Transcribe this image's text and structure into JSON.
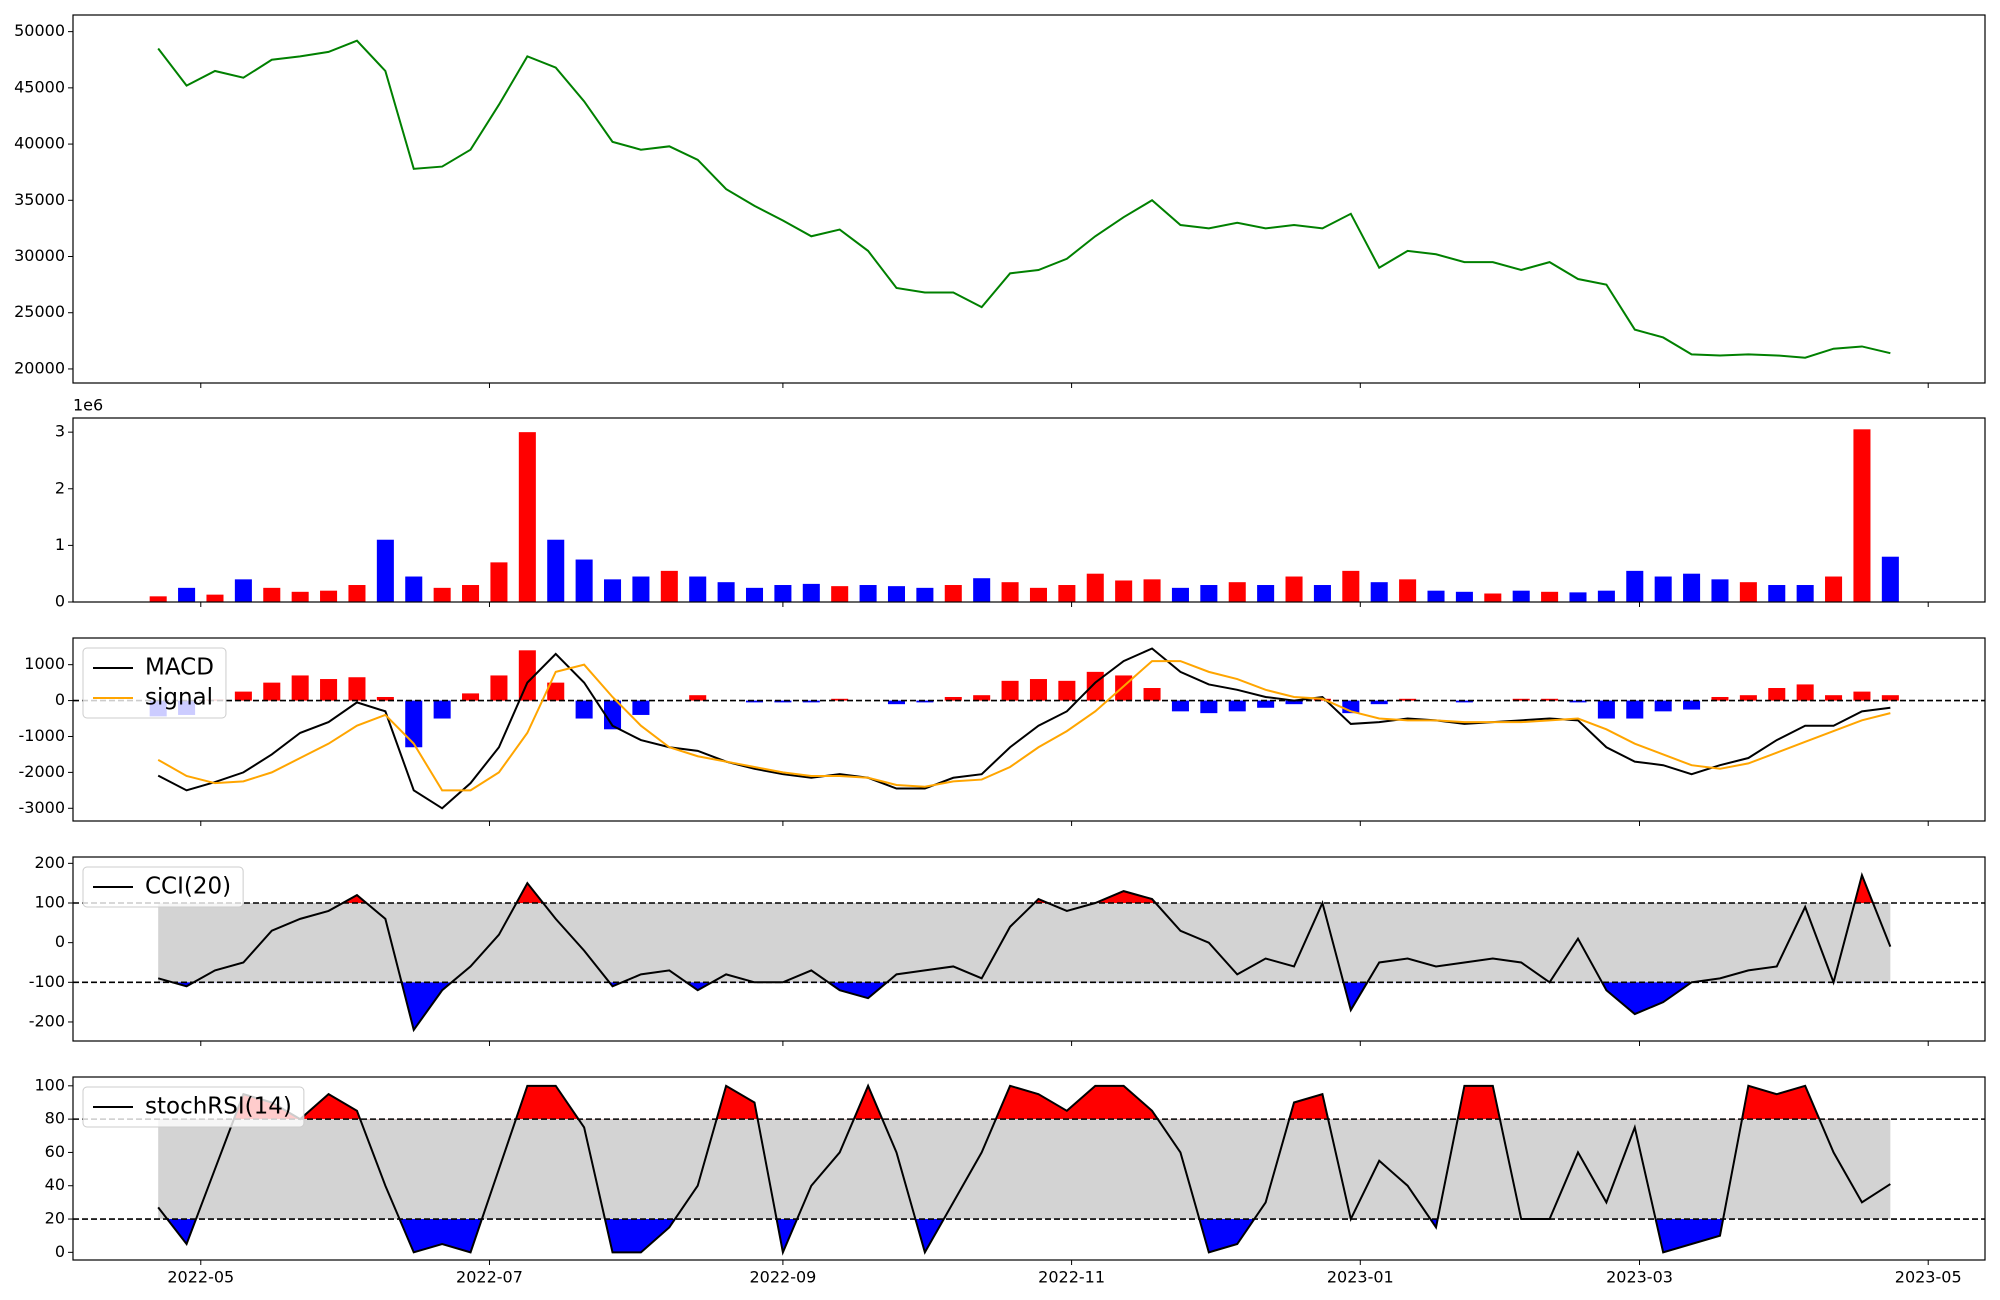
{
  "chart_data": [
    {
      "type": "line",
      "x": [
        19104,
        19110,
        19116,
        19122,
        19128,
        19134,
        19140,
        19146,
        19152,
        19158,
        19164,
        19170,
        19176,
        19182,
        19188,
        19194,
        19200,
        19206,
        19212,
        19218,
        19224,
        19230,
        19236,
        19242,
        19248,
        19254,
        19260,
        19266,
        19272,
        19278,
        19284,
        19290,
        19296,
        19302,
        19308,
        19314,
        19320,
        19326,
        19332,
        19338,
        19344,
        19350,
        19356,
        19362,
        19368,
        19374,
        19380,
        19386,
        19392,
        19398,
        19404,
        19410,
        19416,
        19422,
        19428,
        19434,
        19440,
        19446,
        19452,
        19458,
        19464,
        19470
      ],
      "values": [
        48500,
        45200,
        46500,
        45900,
        47500,
        47800,
        48200,
        49200,
        46500,
        37800,
        38000,
        39500,
        43500,
        47800,
        46800,
        43800,
        40200,
        39500,
        39800,
        38600,
        36000,
        34500,
        33200,
        31800,
        32400,
        30500,
        27200,
        26800,
        26800,
        25500,
        28500,
        28800,
        29800,
        31800,
        33500,
        35000,
        32800,
        32500,
        33000,
        32500,
        32800,
        32500,
        33800,
        29000,
        30500,
        30200,
        29500,
        29500,
        28800,
        29500,
        28000,
        27500,
        23500,
        22800,
        21300,
        21200,
        21300,
        21200,
        21000,
        21800,
        22000,
        21400
      ],
      "color": "green",
      "xlim": [
        19086,
        19490
      ],
      "ylim": [
        18750,
        51480
      ],
      "yticks": [
        20000,
        25000,
        30000,
        35000,
        40000,
        45000,
        50000
      ]
    },
    {
      "type": "bar",
      "x": [
        19104,
        19110,
        19116,
        19122,
        19128,
        19134,
        19140,
        19146,
        19152,
        19158,
        19164,
        19170,
        19176,
        19182,
        19188,
        19194,
        19200,
        19206,
        19212,
        19218,
        19224,
        19230,
        19236,
        19242,
        19248,
        19254,
        19260,
        19266,
        19272,
        19278,
        19284,
        19290,
        19296,
        19302,
        19308,
        19314,
        19320,
        19326,
        19332,
        19338,
        19344,
        19350,
        19356,
        19362,
        19368,
        19374,
        19380,
        19386,
        19392,
        19398,
        19404,
        19410,
        19416,
        19422,
        19428,
        19434,
        19440,
        19446,
        19452,
        19458,
        19464,
        19470
      ],
      "values": [
        100000,
        250000,
        130000,
        400000,
        250000,
        180000,
        200000,
        300000,
        1100000,
        450000,
        250000,
        300000,
        700000,
        3000000,
        1100000,
        750000,
        400000,
        450000,
        550000,
        450000,
        350000,
        250000,
        300000,
        320000,
        280000,
        300000,
        280000,
        250000,
        300000,
        420000,
        350000,
        250000,
        300000,
        500000,
        380000,
        400000,
        250000,
        300000,
        350000,
        300000,
        450000,
        300000,
        550000,
        350000,
        400000,
        200000,
        180000,
        150000,
        200000,
        180000,
        170000,
        200000,
        550000,
        450000,
        500000,
        400000,
        350000,
        300000,
        300000,
        450000,
        3050000,
        800000
      ],
      "up_color": "red",
      "down_color": "blue",
      "xlim": [
        19086,
        19490
      ],
      "ylim": [
        0,
        3250000
      ],
      "yticks": [
        0,
        {
          "value": 1000000,
          "label": "1"
        },
        {
          "value": 2000000,
          "label": "2"
        },
        {
          "value": 3000000,
          "label": "3"
        }
      ],
      "y_offset_label": "1e6"
    },
    {
      "type": "macd",
      "x": [
        19104,
        19110,
        19116,
        19122,
        19128,
        19134,
        19140,
        19146,
        19152,
        19158,
        19164,
        19170,
        19176,
        19182,
        19188,
        19194,
        19200,
        19206,
        19212,
        19218,
        19224,
        19230,
        19236,
        19242,
        19248,
        19254,
        19260,
        19266,
        19272,
        19278,
        19284,
        19290,
        19296,
        19302,
        19308,
        19314,
        19320,
        19326,
        19332,
        19338,
        19344,
        19350,
        19356,
        19362,
        19368,
        19374,
        19380,
        19386,
        19392,
        19398,
        19404,
        19410,
        19416,
        19422,
        19428,
        19434,
        19440,
        19446,
        19452,
        19458,
        19464,
        19470
      ],
      "series": [
        {
          "name": "MACD",
          "color": "black",
          "values": [
            -2090,
            -2500,
            -2270,
            -2000,
            -1500,
            -900,
            -600,
            -50,
            -300,
            -2500,
            -3000,
            -2300,
            -1300,
            500,
            1300,
            500,
            -700,
            -1100,
            -1300,
            -1400,
            -1700,
            -1900,
            -2050,
            -2150,
            -2050,
            -2150,
            -2450,
            -2450,
            -2150,
            -2050,
            -1300,
            -700,
            -300,
            500,
            1100,
            1450,
            800,
            450,
            300,
            100,
            0,
            100,
            -650,
            -600,
            -500,
            -550,
            -650,
            -600,
            -550,
            -500,
            -550,
            -1300,
            -1700,
            -1800,
            -2050,
            -1800,
            -1600,
            -1100,
            -700,
            -700,
            -300,
            -200
          ]
        },
        {
          "name": "signal",
          "color": "orange",
          "values": [
            -1650,
            -2100,
            -2300,
            -2250,
            -2000,
            -1600,
            -1200,
            -700,
            -400,
            -1200,
            -2500,
            -2500,
            -2000,
            -900,
            800,
            1000,
            100,
            -700,
            -1300,
            -1550,
            -1700,
            -1850,
            -2000,
            -2100,
            -2100,
            -2150,
            -2350,
            -2400,
            -2250,
            -2200,
            -1850,
            -1300,
            -850,
            -300,
            400,
            1100,
            1100,
            800,
            600,
            300,
            100,
            50,
            -300,
            -500,
            -550,
            -550,
            -600,
            -600,
            -600,
            -550,
            -500,
            -800,
            -1200,
            -1500,
            -1800,
            -1900,
            -1750,
            -1450,
            -1150,
            -850,
            -550,
            -350
          ]
        }
      ],
      "histogram": {
        "values": [
          -440,
          -400,
          30,
          250,
          500,
          700,
          600,
          650,
          100,
          -1300,
          -500,
          200,
          700,
          1400,
          500,
          -500,
          -800,
          -400,
          0,
          150,
          0,
          -50,
          -50,
          -50,
          50,
          0,
          -100,
          -50,
          100,
          150,
          550,
          600,
          550,
          800,
          700,
          350,
          -300,
          -350,
          -300,
          -200,
          -100,
          50,
          -350,
          -100,
          50,
          0,
          -50,
          0,
          50,
          50,
          -50,
          -500,
          -500,
          -300,
          -250,
          100,
          150,
          350,
          450,
          150,
          250,
          150
        ],
        "up_color": "red",
        "down_color": "blue"
      },
      "reference_line": 0,
      "xlim": [
        19086,
        19490
      ],
      "ylim": [
        -3354,
        1743
      ],
      "yticks": [
        -3000,
        -2000,
        -1000,
        0,
        1000
      ],
      "legend": "upper left"
    },
    {
      "type": "band",
      "x": [
        19104,
        19110,
        19116,
        19122,
        19128,
        19134,
        19140,
        19146,
        19152,
        19158,
        19164,
        19170,
        19176,
        19182,
        19188,
        19194,
        19200,
        19206,
        19212,
        19218,
        19224,
        19230,
        19236,
        19242,
        19248,
        19254,
        19260,
        19266,
        19272,
        19278,
        19284,
        19290,
        19296,
        19302,
        19308,
        19314,
        19320,
        19326,
        19332,
        19338,
        19344,
        19350,
        19356,
        19362,
        19368,
        19374,
        19380,
        19386,
        19392,
        19398,
        19404,
        19410,
        19416,
        19422,
        19428,
        19434,
        19440,
        19446,
        19452,
        19458,
        19464,
        19470
      ],
      "series": [
        {
          "name": "CCI(20)",
          "color": "black",
          "values": [
            -90,
            -110,
            -70,
            -50,
            30,
            60,
            80,
            120,
            60,
            -220,
            -120,
            -60,
            20,
            150,
            60,
            -20,
            -110,
            -80,
            -70,
            -120,
            -80,
            -100,
            -100,
            -70,
            -120,
            -140,
            -80,
            -70,
            -60,
            -90,
            40,
            110,
            80,
            100,
            130,
            110,
            30,
            0,
            -80,
            -40,
            -60,
            100,
            -170,
            -50,
            -40,
            -60,
            -50,
            -40,
            -50,
            -100,
            10,
            -120,
            -180,
            -150,
            -100,
            -90,
            -70,
            -60,
            90,
            -100,
            170,
            -10
          ]
        }
      ],
      "levels": [
        -100,
        100
      ],
      "band_color": "lightgray",
      "above_color": "red",
      "below_color": "blue",
      "xlim": [
        19086,
        19490
      ],
      "ylim": [
        -248,
        216
      ],
      "yticks": [
        -200,
        -100,
        0,
        100,
        200
      ],
      "legend": "upper left"
    },
    {
      "type": "band",
      "x": [
        19104,
        19110,
        19116,
        19122,
        19128,
        19134,
        19140,
        19146,
        19152,
        19158,
        19164,
        19170,
        19176,
        19182,
        19188,
        19194,
        19200,
        19206,
        19212,
        19218,
        19224,
        19230,
        19236,
        19242,
        19248,
        19254,
        19260,
        19266,
        19272,
        19278,
        19284,
        19290,
        19296,
        19302,
        19308,
        19314,
        19320,
        19326,
        19332,
        19338,
        19344,
        19350,
        19356,
        19362,
        19368,
        19374,
        19380,
        19386,
        19392,
        19398,
        19404,
        19410,
        19416,
        19422,
        19428,
        19434,
        19440,
        19446,
        19452,
        19458,
        19464,
        19470
      ],
      "series": [
        {
          "name": "stochRSI(14)",
          "color": "black",
          "values": [
            27,
            5,
            50,
            95,
            90,
            80,
            95,
            85,
            40,
            0,
            5,
            0,
            50,
            100,
            100,
            75,
            0,
            0,
            15,
            40,
            100,
            90,
            0,
            40,
            60,
            100,
            60,
            0,
            30,
            60,
            100,
            95,
            85,
            100,
            100,
            85,
            60,
            0,
            5,
            30,
            90,
            95,
            20,
            55,
            40,
            15,
            100,
            100,
            20,
            20,
            60,
            30,
            75,
            0,
            5,
            10,
            100,
            95,
            100,
            60,
            30,
            41
          ]
        }
      ],
      "levels": [
        20,
        80
      ],
      "band_color": "lightgray",
      "above_color": "red",
      "below_color": "blue",
      "xlim": [
        19086,
        19490
      ],
      "ylim": [
        -4.6,
        105.3
      ],
      "yticks": [
        0,
        20,
        40,
        60,
        80,
        100
      ],
      "xticks": [
        {
          "value": 19113,
          "label": "2022-05"
        },
        {
          "value": 19174,
          "label": "2022-07"
        },
        {
          "value": 19236,
          "label": "2022-09"
        },
        {
          "value": 19297,
          "label": "2022-11"
        },
        {
          "value": 19358,
          "label": "2023-01"
        },
        {
          "value": 19417,
          "label": "2023-03"
        },
        {
          "value": 19478,
          "label": "2023-05"
        }
      ],
      "legend": "upper left"
    }
  ]
}
